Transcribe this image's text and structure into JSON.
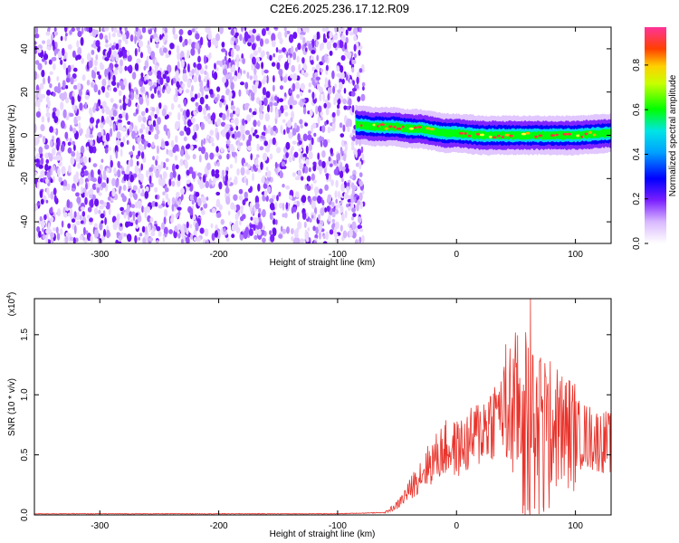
{
  "title": "C2E6.2025.236.17.12.R09",
  "chart_data": [
    {
      "type": "heatmap",
      "name": "spectrogram",
      "xlabel": "Height of straight line (km)",
      "ylabel": "Frequency (Hz)",
      "xlim": [
        -355,
        130
      ],
      "ylim": [
        -50,
        50
      ],
      "xticks": [
        -300,
        -200,
        -100,
        0,
        100
      ],
      "xtick_labels": [
        "-300",
        "-200",
        "-100",
        "0",
        "100"
      ],
      "yticks": [
        -40,
        -20,
        0,
        20,
        40
      ],
      "ytick_labels": [
        "-40",
        "-20",
        "0",
        "20",
        "40"
      ],
      "noise_region_x": [
        -355,
        -78
      ],
      "signal_track": {
        "x": [
          -85,
          -70,
          -60,
          -50,
          -40,
          -30,
          -20,
          -10,
          0,
          20,
          40,
          60,
          80,
          100,
          130
        ],
        "y": [
          5,
          4,
          4,
          4,
          3,
          3,
          2,
          1,
          1,
          0,
          0,
          0,
          0,
          0,
          1
        ]
      },
      "colorbar": {
        "label": "Normalized spectral amplitude",
        "range": [
          0.0,
          0.97
        ],
        "ticks": [
          0.0,
          0.2,
          0.4,
          0.6,
          0.8
        ],
        "tick_labels": [
          "0.0",
          "0.2",
          "0.4",
          "0.6",
          "0.8"
        ],
        "colors": [
          "#ffffff",
          "#7a1fff",
          "#0000ff",
          "#00e5ff",
          "#00ff00",
          "#ffff00",
          "#ff8000",
          "#ff0000",
          "#ff3399"
        ]
      }
    },
    {
      "type": "line",
      "name": "snr",
      "xlabel": "Height of straight line (km)",
      "ylabel": "SNR (10 * v/v)",
      "multiplier_label": "(x10",
      "multiplier_exp": "4",
      "multiplier_close": ")",
      "color": "#e8342c",
      "xlim": [
        -355,
        130
      ],
      "ylim": [
        0,
        1.8
      ],
      "xticks": [
        -300,
        -200,
        -100,
        0,
        100
      ],
      "xtick_labels": [
        "-300",
        "-200",
        "-100",
        "0",
        "100"
      ],
      "yticks": [
        0,
        0.5,
        1.0,
        1.5
      ],
      "ytick_labels": [
        "0.0",
        "0.5",
        "1.0",
        "1.5"
      ],
      "envelope": {
        "x": [
          -355,
          -100,
          -60,
          -50,
          -40,
          -30,
          -20,
          -10,
          0,
          10,
          20,
          30,
          40,
          50,
          60,
          70,
          80,
          90,
          100,
          110,
          120,
          130
        ],
        "y": [
          0.01,
          0.01,
          0.02,
          0.08,
          0.2,
          0.35,
          0.45,
          0.55,
          0.55,
          0.6,
          0.7,
          0.8,
          0.85,
          0.9,
          0.85,
          0.8,
          0.75,
          0.7,
          0.68,
          0.65,
          0.62,
          0.6
        ]
      },
      "peaks": [
        {
          "x": 62,
          "y": 1.8
        },
        {
          "x": 58,
          "y": 1.52
        },
        {
          "x": 49,
          "y": 1.25
        },
        {
          "x": 70,
          "y": 1.28
        },
        {
          "x": 75,
          "y": 1.15
        },
        {
          "x": 67,
          "y": 1.08
        },
        {
          "x": 35,
          "y": 1.0
        },
        {
          "x": 85,
          "y": 1.05
        }
      ]
    }
  ]
}
